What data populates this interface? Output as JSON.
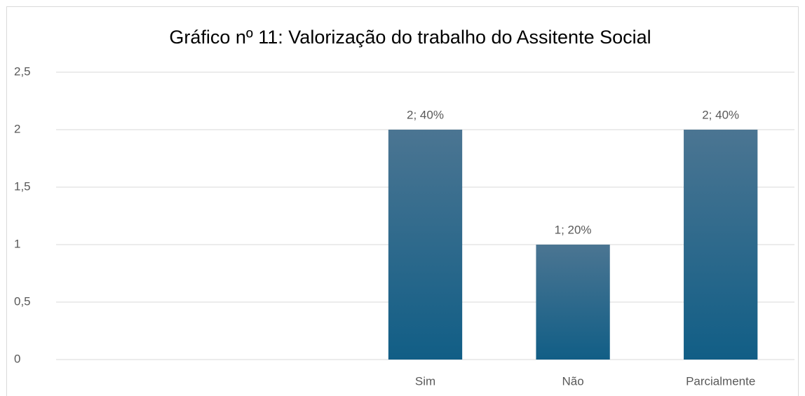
{
  "chart_data": {
    "type": "bar",
    "title": "Gráfico nº 11: Valorização do trabalho do Assitente Social",
    "categories": [
      null,
      null,
      "Sim",
      "Não",
      "Parcialmente"
    ],
    "values": [
      null,
      null,
      2,
      1,
      2
    ],
    "value_labels": [
      null,
      null,
      "2; 40%",
      "1; 20%",
      "2; 40%"
    ],
    "gradient": [
      "#4b7592",
      "#115e86"
    ],
    "ylim": [
      0,
      2.5
    ],
    "yticks": [
      0,
      {
        "value": 0.5,
        "label": "0,5"
      },
      1,
      {
        "value": 1.5,
        "label": "1,5"
      },
      2,
      {
        "value": 2.5,
        "label": "2,5"
      }
    ],
    "grid": true
  }
}
